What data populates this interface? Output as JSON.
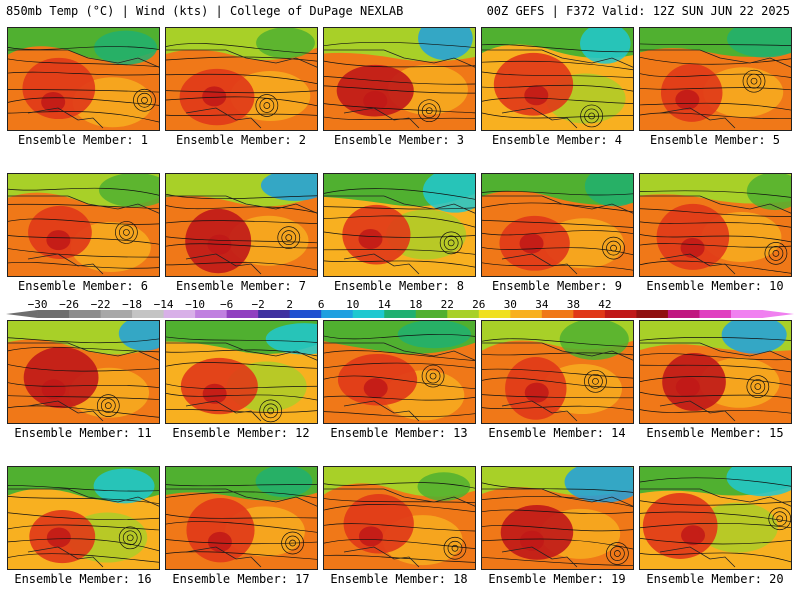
{
  "header": {
    "left": "850mb Temp (°C) | Wind (kts) | College of DuPage NEXLAB",
    "right": "00Z GEFS | F372 Valid: 12Z SUN JUN 22 2025"
  },
  "members": [
    {
      "label": "Ensemble Member: 1"
    },
    {
      "label": "Ensemble Member: 2"
    },
    {
      "label": "Ensemble Member: 3"
    },
    {
      "label": "Ensemble Member: 4"
    },
    {
      "label": "Ensemble Member: 5"
    },
    {
      "label": "Ensemble Member: 6"
    },
    {
      "label": "Ensemble Member: 7"
    },
    {
      "label": "Ensemble Member: 8"
    },
    {
      "label": "Ensemble Member: 9"
    },
    {
      "label": "Ensemble Member: 10"
    },
    {
      "label": "Ensemble Member: 11"
    },
    {
      "label": "Ensemble Member: 12"
    },
    {
      "label": "Ensemble Member: 13"
    },
    {
      "label": "Ensemble Member: 14"
    },
    {
      "label": "Ensemble Member: 15"
    },
    {
      "label": "Ensemble Member: 16"
    },
    {
      "label": "Ensemble Member: 17"
    },
    {
      "label": "Ensemble Member: 18"
    },
    {
      "label": "Ensemble Member: 19"
    },
    {
      "label": "Ensemble Member: 20"
    }
  ],
  "colorbar": {
    "ticks": [
      "−30",
      "−26",
      "−22",
      "−18",
      "−14",
      "−10",
      "−6",
      "−2",
      "2",
      "6",
      "10",
      "14",
      "18",
      "22",
      "26",
      "30",
      "34",
      "38",
      "42"
    ],
    "colors": [
      "#6e6e6e",
      "#8c8c8c",
      "#a8a8a8",
      "#c4c4c4",
      "#d8b0e8",
      "#c080e0",
      "#9040c0",
      "#4030a0",
      "#2050d0",
      "#20a0e0",
      "#20c8d0",
      "#20b070",
      "#50b030",
      "#a8d028",
      "#f0e020",
      "#f8b020",
      "#f07818",
      "#e03818",
      "#c01818",
      "#901010",
      "#c01880",
      "#e040c0",
      "#f080f0"
    ]
  }
}
